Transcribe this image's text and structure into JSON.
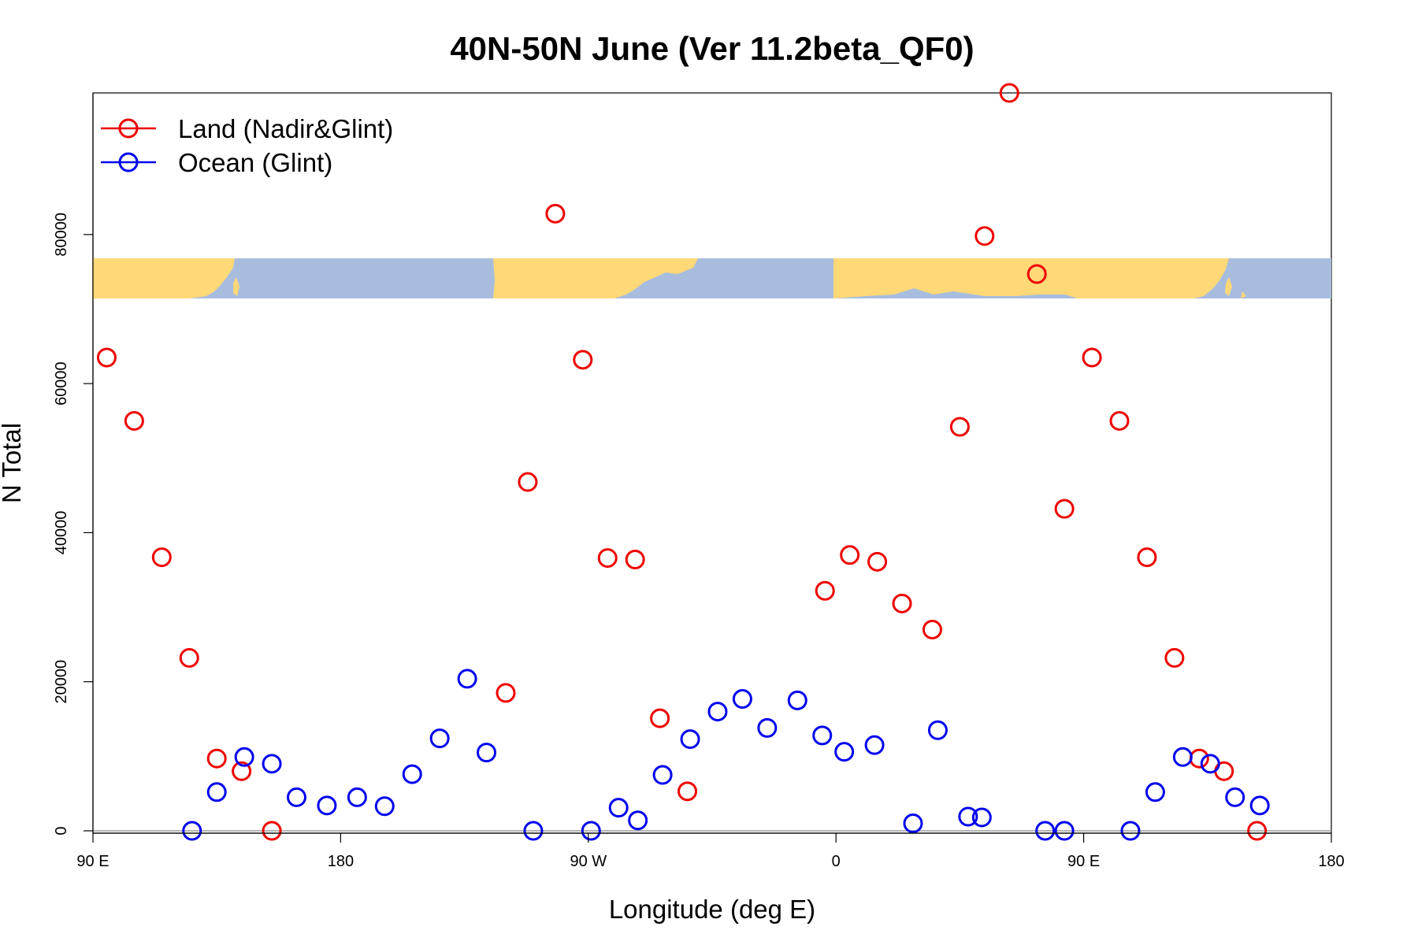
{
  "chart_data": {
    "type": "scatter",
    "title": "40N-50N June (Ver 11.2beta_QF0)",
    "xlabel": "Longitude (deg E)",
    "ylabel": "N Total",
    "xlim": [
      90,
      540
    ],
    "ylim": [
      0,
      99000
    ],
    "x_ticks": [
      {
        "value": 90,
        "label": "90 E"
      },
      {
        "value": 180,
        "label": "180"
      },
      {
        "value": 270,
        "label": "90 W"
      },
      {
        "value": 360,
        "label": "0"
      },
      {
        "value": 450,
        "label": "90 E"
      },
      {
        "value": 540,
        "label": "180"
      }
    ],
    "y_ticks": [
      {
        "value": 0,
        "label": "0"
      },
      {
        "value": 20000,
        "label": "20000"
      },
      {
        "value": 40000,
        "label": "40000"
      },
      {
        "value": 60000,
        "label": "60000"
      },
      {
        "value": 80000,
        "label": "80000"
      }
    ],
    "legend_position": "top-left",
    "map_strip": {
      "colors": {
        "land": "#FFD878",
        "ocean": "#A8BDDD"
      }
    },
    "series": [
      {
        "name": "Land (Nadir&Glint)",
        "color": "#EE0000",
        "points": [
          [
            95,
            63500
          ],
          [
            105,
            55000
          ],
          [
            115,
            36700
          ],
          [
            125,
            23200
          ],
          [
            135,
            9700
          ],
          [
            144,
            8000
          ],
          [
            155,
            0
          ],
          [
            240,
            18500
          ],
          [
            248,
            46800
          ],
          [
            258,
            82800
          ],
          [
            268,
            63200
          ],
          [
            277,
            36600
          ],
          [
            287,
            36400
          ],
          [
            296,
            15100
          ],
          [
            306,
            5300
          ],
          [
            356,
            32200
          ],
          [
            365,
            37000
          ],
          [
            375,
            36100
          ],
          [
            384,
            30500
          ],
          [
            395,
            27000
          ],
          [
            405,
            54200
          ],
          [
            414,
            79800
          ],
          [
            423,
            99000
          ],
          [
            433,
            74700
          ],
          [
            443,
            43200
          ],
          [
            453,
            63500
          ],
          [
            463,
            55000
          ],
          [
            473,
            36700
          ],
          [
            483,
            23200
          ],
          [
            492,
            9700
          ],
          [
            501,
            8000
          ],
          [
            513,
            0
          ]
        ]
      },
      {
        "name": "Ocean (Glint)",
        "color": "#0000EE",
        "points": [
          [
            126,
            0
          ],
          [
            135,
            5200
          ],
          [
            145,
            9900
          ],
          [
            155,
            9000
          ],
          [
            164,
            4500
          ],
          [
            175,
            3400
          ],
          [
            186,
            4500
          ],
          [
            196,
            3300
          ],
          [
            206,
            7600
          ],
          [
            216,
            12400
          ],
          [
            226,
            20400
          ],
          [
            233,
            10500
          ],
          [
            250,
            0
          ],
          [
            271,
            0
          ],
          [
            281,
            3100
          ],
          [
            288,
            1400
          ],
          [
            297,
            7500
          ],
          [
            307,
            12300
          ],
          [
            317,
            16000
          ],
          [
            326,
            17700
          ],
          [
            335,
            13800
          ],
          [
            346,
            17500
          ],
          [
            355,
            12800
          ],
          [
            363,
            10600
          ],
          [
            374,
            11500
          ],
          [
            388,
            1000
          ],
          [
            397,
            13500
          ],
          [
            408,
            1900
          ],
          [
            413,
            1800
          ],
          [
            436,
            0
          ],
          [
            443,
            0
          ],
          [
            467,
            0
          ],
          [
            476,
            5200
          ],
          [
            486,
            9900
          ],
          [
            496,
            9000
          ],
          [
            505,
            4500
          ],
          [
            514,
            3400
          ]
        ]
      }
    ]
  }
}
